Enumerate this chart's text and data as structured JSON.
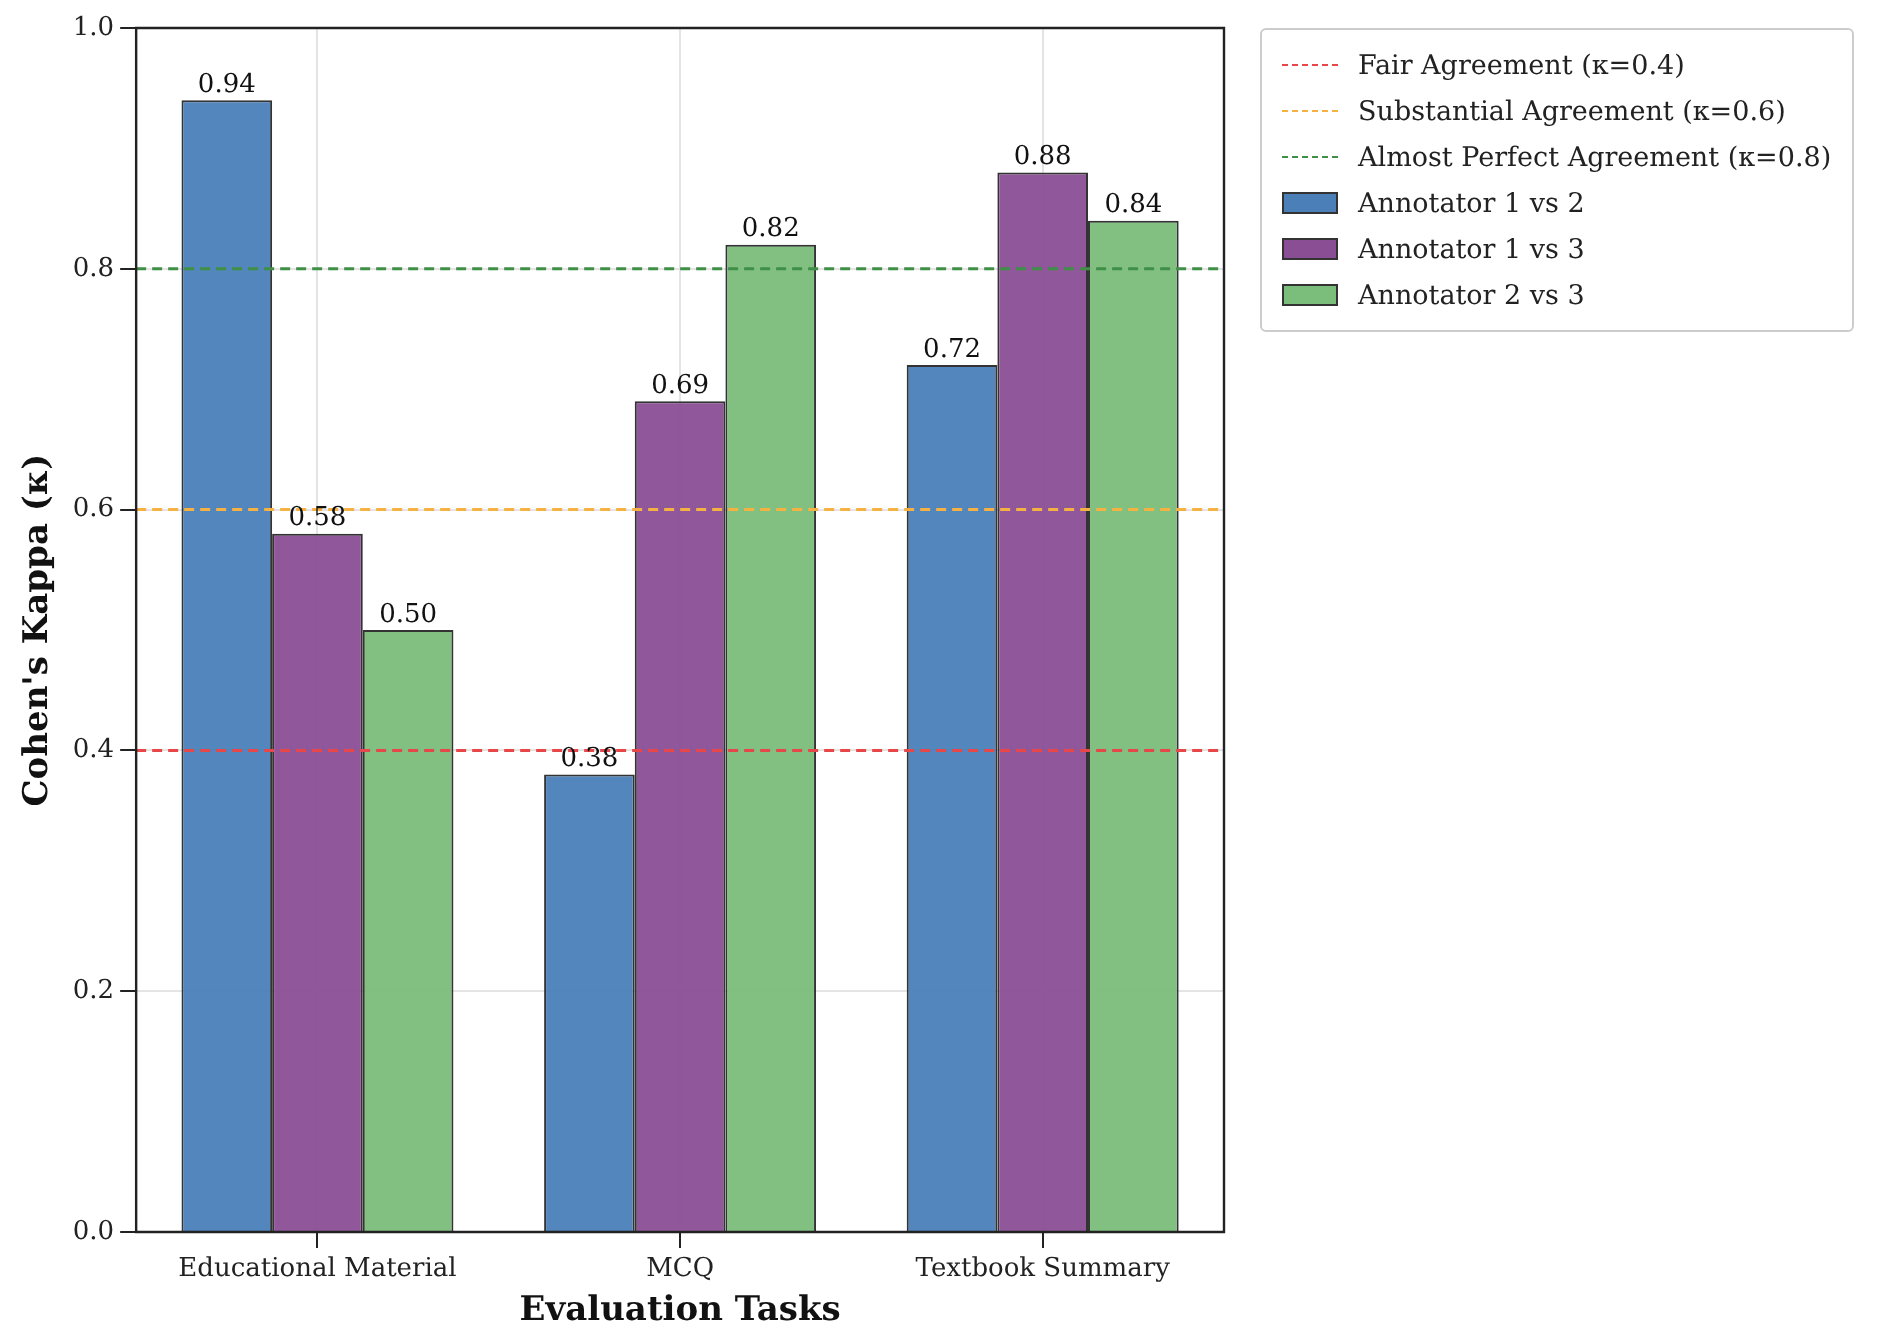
{
  "chart_data": {
    "type": "bar",
    "xlabel": "Evaluation Tasks",
    "ylabel": "Cohen's Kappa (κ)",
    "categories": [
      "Educational Material",
      "MCQ",
      "Textbook Summary"
    ],
    "series": [
      {
        "name": "Annotator 1 vs 2",
        "color": "#4a7fb8",
        "values": [
          0.94,
          0.38,
          0.72
        ],
        "value_labels": [
          "0.94",
          "0.38",
          "0.72"
        ]
      },
      {
        "name": "Annotator 1 vs 3",
        "color": "#8a4e95",
        "values": [
          0.58,
          0.69,
          0.88
        ],
        "value_labels": [
          "0.58",
          "0.69",
          "0.88"
        ]
      },
      {
        "name": "Annotator 2 vs 3",
        "color": "#7bbd7a",
        "values": [
          0.5,
          0.82,
          0.84
        ],
        "value_labels": [
          "0.50",
          "0.82",
          "0.84"
        ]
      }
    ],
    "ylim": [
      0,
      1
    ],
    "yticks": [
      {
        "value": 0,
        "label": "0.0"
      },
      {
        "value": 0.2,
        "label": "0.2"
      },
      {
        "value": 0.4,
        "label": "0.4"
      },
      {
        "value": 0.6,
        "label": "0.6"
      },
      {
        "value": 0.8,
        "label": "0.8"
      },
      {
        "value": 1,
        "label": "1.0"
      }
    ],
    "ref_lines": [
      {
        "axis": "y",
        "value": 0.4,
        "label": "Fair Agreement (κ=0.4)",
        "color": "#e8474a",
        "line_style": "dashed"
      },
      {
        "axis": "y",
        "value": 0.6,
        "label": "Substantial Agreement (κ=0.6)",
        "color": "#f5b142",
        "line_style": "dashed"
      },
      {
        "axis": "y",
        "value": 0.8,
        "label": "Almost Perfect Agreement (κ=0.8)",
        "color": "#3f8f47",
        "line_style": "dashed"
      }
    ],
    "grid": true,
    "legend": "top right"
  }
}
